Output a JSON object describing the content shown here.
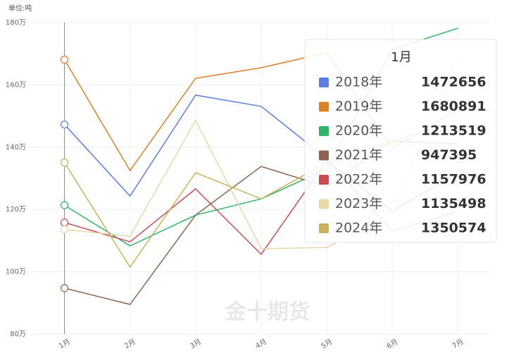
{
  "chart_data": {
    "type": "line",
    "unit_label": "单位:吨",
    "watermark": "金十期货",
    "categories": [
      "1月",
      "2月",
      "3月",
      "4月",
      "5月",
      "6月",
      "7月"
    ],
    "ylim": [
      80,
      180
    ],
    "yticks": [
      {
        "value": 80,
        "label": "80万"
      },
      {
        "value": 100,
        "label": "100万"
      },
      {
        "value": 120,
        "label": "120万"
      },
      {
        "value": 140,
        "label": "140万"
      },
      {
        "value": 160,
        "label": "160万"
      },
      {
        "value": 180,
        "label": "180万"
      }
    ],
    "grid": true,
    "series": [
      {
        "name": "2018年",
        "color": "#5b7fde",
        "values": [
          147.2656,
          124.3,
          156.7,
          153.1,
          136.3,
          113.0,
          119.5
        ],
        "value_labels": [
          "1472656",
          null,
          null,
          null,
          null,
          null,
          null
        ]
      },
      {
        "name": "2019年",
        "color": "#d9822b",
        "values": [
          168.0891,
          132.5,
          162.1,
          165.5,
          170.3,
          139.7,
          152.0
        ],
        "value_labels": [
          "1680891",
          null,
          null,
          null,
          null,
          null,
          null
        ]
      },
      {
        "name": "2020年",
        "color": "#2fb36a",
        "values": [
          121.3519,
          108.3,
          118.2,
          123.4,
          133.0,
          171.4,
          178.2
        ],
        "value_labels": [
          "1213519",
          null,
          null,
          null,
          null,
          null,
          null
        ]
      },
      {
        "name": "2021年",
        "color": "#8c6450",
        "values": [
          94.7395,
          89.5,
          118.2,
          133.8,
          127.3,
          142.0,
          141.0
        ],
        "value_labels": [
          "947395",
          null,
          null,
          null,
          null,
          null,
          null
        ]
      },
      {
        "name": "2022年",
        "color": "#c84b55",
        "values": [
          115.7976,
          109.6,
          126.6,
          105.6,
          135.7,
          119.4,
          131.8
        ],
        "value_labels": [
          "1157976",
          null,
          null,
          null,
          null,
          null,
          null
        ]
      },
      {
        "name": "2023年",
        "color": "#e8d7a8",
        "values": [
          113.5498,
          111.4,
          148.6,
          107.4,
          107.8,
          119.0,
          168.7
        ],
        "value_labels": [
          "1135498",
          null,
          null,
          null,
          null,
          null,
          null
        ]
      },
      {
        "name": "2024年",
        "color": "#c9b45e",
        "values": [
          135.0574,
          101.5,
          131.8,
          123.4,
          135.0,
          142.0,
          148.8
        ],
        "value_labels": [
          "1350574",
          null,
          null,
          null,
          null,
          null,
          null
        ]
      }
    ],
    "tooltip_index": 0
  }
}
